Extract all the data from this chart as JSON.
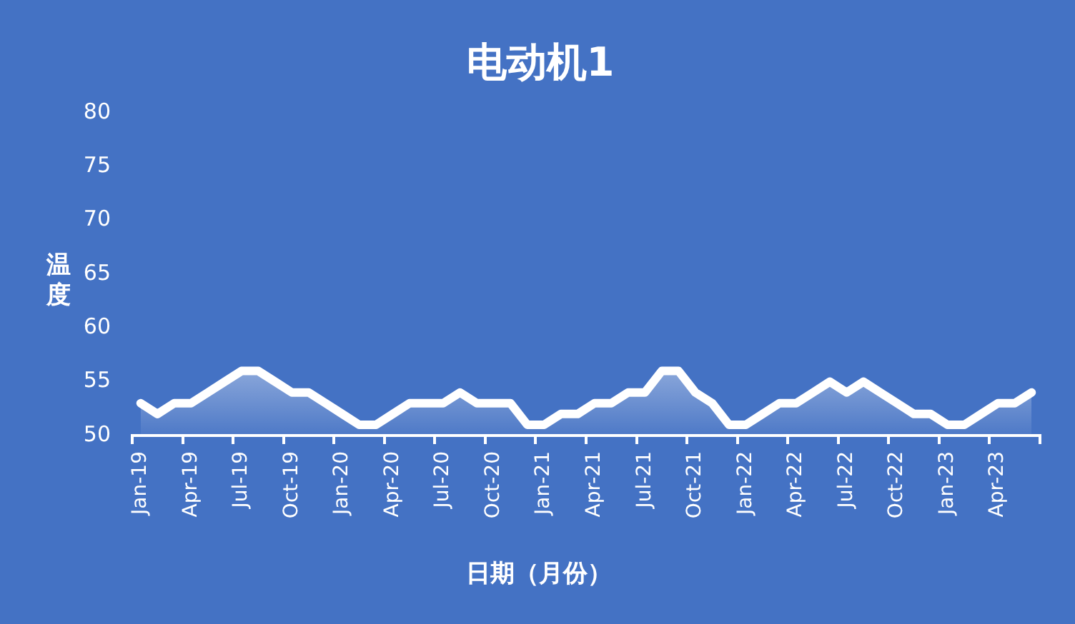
{
  "chart_data": {
    "type": "area",
    "title": "电动机1",
    "xlabel": "日期（月份）",
    "ylabel": "温度",
    "categories": [
      "Jan-19",
      null,
      null,
      "Apr-19",
      null,
      null,
      "Jul-19",
      null,
      null,
      "Oct-19",
      null,
      null,
      "Jan-20",
      null,
      null,
      "Apr-20",
      null,
      null,
      "Jul-20",
      null,
      null,
      "Oct-20",
      null,
      null,
      "Jan-21",
      null,
      null,
      "Apr-21",
      null,
      null,
      "Jul-21",
      null,
      null,
      "Oct-21",
      null,
      null,
      "Jan-22",
      null,
      null,
      "Apr-22",
      null,
      null,
      "Jul-22",
      null,
      null,
      "Oct-22",
      null,
      null,
      "Jan-23",
      null,
      null,
      "Apr-23",
      null,
      null
    ],
    "series": [
      {
        "color": "#ffffff",
        "values": [
          53,
          52,
          53,
          53,
          54,
          55,
          56,
          56,
          55,
          54,
          54,
          53,
          52,
          51,
          51,
          52,
          53,
          53,
          53,
          54,
          53,
          53,
          53,
          51,
          51,
          52,
          52,
          53,
          53,
          54,
          54,
          56,
          56,
          54,
          53,
          51,
          51,
          52,
          53,
          53,
          54,
          55,
          54,
          55,
          54,
          53,
          52,
          52,
          51,
          51,
          52,
          53,
          53,
          54
        ]
      }
    ],
    "ylim": [
      50,
      80
    ],
    "yticks": [
      50,
      55,
      60,
      65,
      70,
      75,
      80
    ],
    "grid": false,
    "legend": false,
    "marker": "none",
    "line_style": "solid"
  }
}
